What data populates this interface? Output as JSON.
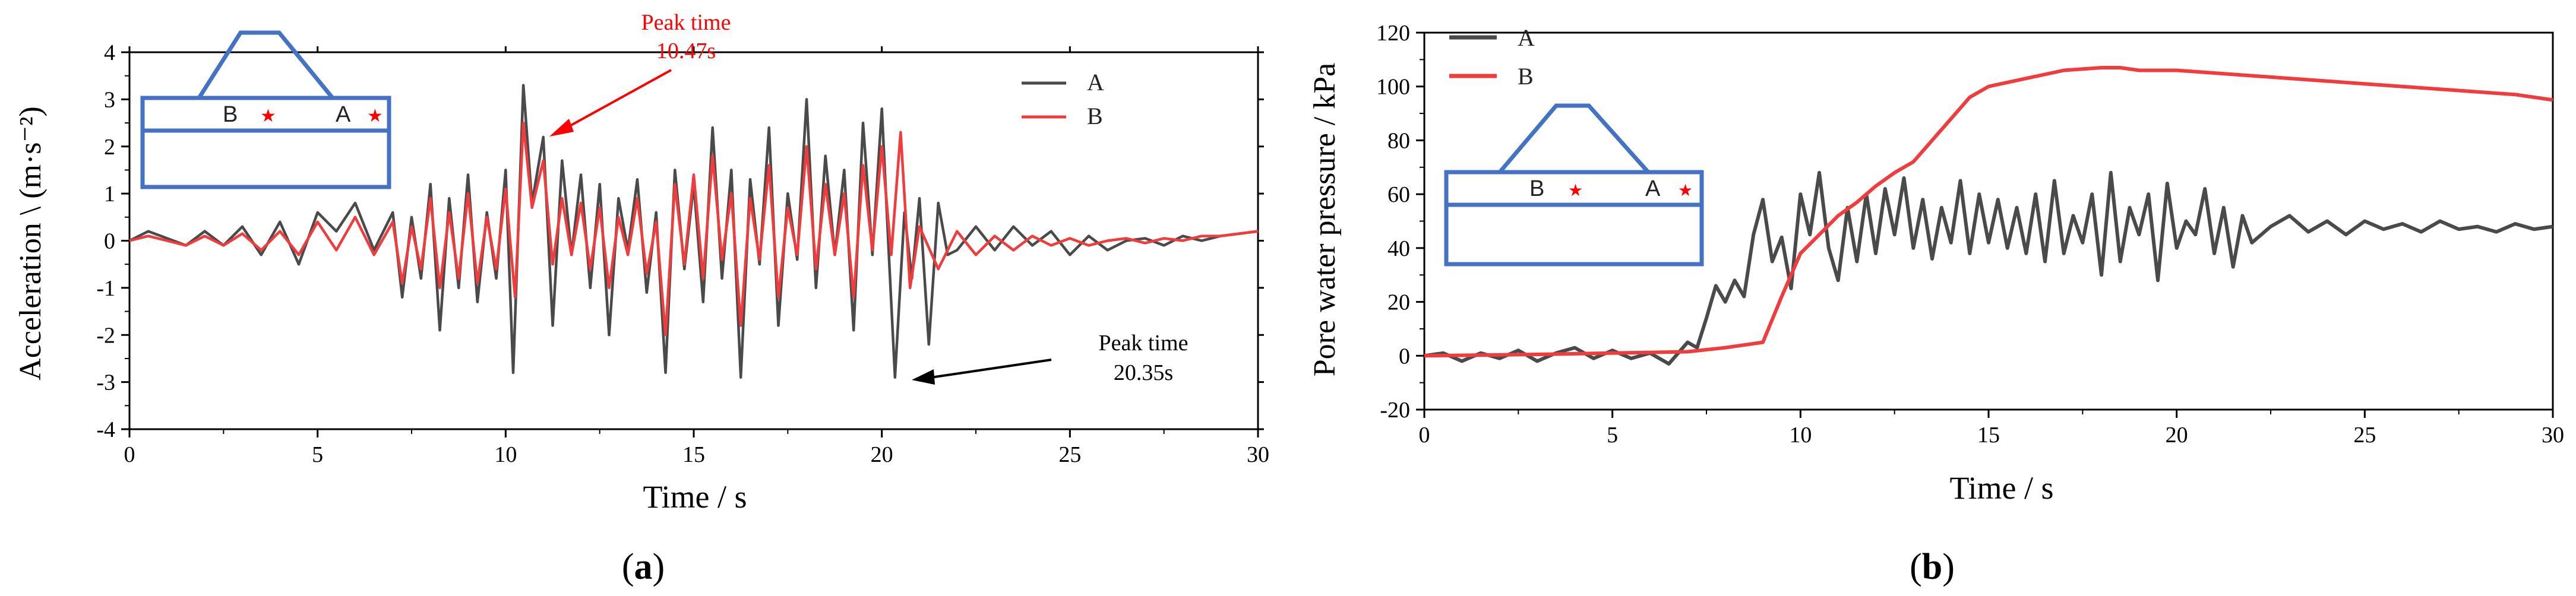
{
  "colors": {
    "series_A": "#4a4a4a",
    "series_B": "#f03c3c",
    "inset": "#4472c4",
    "star": "#ff0000",
    "axis": "#000000",
    "peak_red": "#ff0000"
  },
  "panel_labels": {
    "a": "(a)",
    "b": "(b)"
  },
  "chart_data": [
    {
      "type": "line",
      "title": "",
      "xlabel": "Time / s",
      "ylabel": "Acceleration \\ (m·s⁻²)",
      "xlim": [
        0,
        30
      ],
      "ylim": [
        -4,
        4
      ],
      "xticks": [
        0,
        5,
        10,
        15,
        20,
        25,
        30
      ],
      "yticks": [
        -4,
        -3,
        -2,
        -1,
        0,
        1,
        2,
        3,
        4
      ],
      "grid": false,
      "legend": "top-right",
      "inset": {
        "label_b": "B",
        "label_a": "A"
      },
      "series": [
        {
          "name": "A",
          "x": [
            0,
            0.5,
            1,
            1.5,
            2,
            2.5,
            3,
            3.5,
            4,
            4.5,
            5,
            5.5,
            6,
            6.5,
            7,
            7.25,
            7.5,
            7.75,
            8,
            8.25,
            8.5,
            8.75,
            9,
            9.25,
            9.5,
            9.75,
            10,
            10.2,
            10.47,
            10.7,
            11,
            11.25,
            11.5,
            11.75,
            12,
            12.25,
            12.5,
            12.75,
            13,
            13.25,
            13.5,
            13.75,
            14,
            14.25,
            14.5,
            14.75,
            15,
            15.25,
            15.5,
            15.75,
            16,
            16.25,
            16.5,
            16.75,
            17,
            17.25,
            17.5,
            17.75,
            18,
            18.25,
            18.5,
            18.75,
            19,
            19.25,
            19.5,
            19.75,
            20,
            20.2,
            20.35,
            20.6,
            20.8,
            21,
            21.25,
            21.5,
            21.75,
            22,
            22.5,
            23,
            23.5,
            24,
            24.5,
            25,
            25.5,
            26,
            26.5,
            27,
            27.5,
            28,
            28.5,
            29,
            29.5,
            30
          ],
          "values": [
            0,
            0.2,
            0.05,
            -0.1,
            0.2,
            -0.1,
            0.3,
            -0.3,
            0.4,
            -0.5,
            0.6,
            0.2,
            0.8,
            -0.2,
            0.6,
            -1.2,
            0.5,
            -0.8,
            1.2,
            -1.9,
            0.9,
            -1.0,
            1.4,
            -1.3,
            0.6,
            -0.8,
            1.5,
            -2.8,
            3.3,
            0.8,
            2.2,
            -1.8,
            1.7,
            -0.3,
            1.4,
            -1.0,
            1.2,
            -2.0,
            0.9,
            -0.2,
            1.3,
            -1.1,
            0.6,
            -2.8,
            1.5,
            -0.6,
            1.2,
            -1.3,
            2.4,
            -0.8,
            1.5,
            -2.9,
            1.3,
            -0.5,
            2.4,
            -1.8,
            1.0,
            -0.4,
            3.0,
            -1.0,
            1.8,
            -0.3,
            1.5,
            -1.9,
            2.5,
            -0.3,
            2.8,
            -0.5,
            -2.9,
            0.6,
            -0.8,
            0.9,
            -2.2,
            0.8,
            -0.3,
            -0.2,
            0.3,
            -0.2,
            0.3,
            -0.1,
            0.2,
            -0.3,
            0.1,
            -0.2,
            0.0,
            0.05,
            -0.1,
            0.1,
            0.0,
            0.1,
            0.15,
            0.2
          ]
        },
        {
          "name": "B",
          "x": [
            0,
            0.5,
            1,
            1.5,
            2,
            2.5,
            3,
            3.5,
            4,
            4.5,
            5,
            5.5,
            6,
            6.5,
            7,
            7.25,
            7.5,
            7.75,
            8,
            8.25,
            8.5,
            8.75,
            9,
            9.25,
            9.5,
            9.75,
            10,
            10.25,
            10.47,
            10.7,
            11,
            11.25,
            11.5,
            11.75,
            12,
            12.25,
            12.5,
            12.75,
            13,
            13.25,
            13.5,
            13.75,
            14,
            14.25,
            14.5,
            14.75,
            15,
            15.25,
            15.5,
            15.75,
            16,
            16.25,
            16.5,
            16.75,
            17,
            17.25,
            17.5,
            17.75,
            18,
            18.25,
            18.5,
            18.75,
            19,
            19.25,
            19.5,
            19.75,
            20,
            20.25,
            20.5,
            20.75,
            21,
            21.5,
            22,
            22.5,
            23,
            23.5,
            24,
            24.5,
            25,
            25.5,
            26,
            26.5,
            27,
            27.5,
            28,
            28.5,
            29,
            29.5,
            30
          ],
          "values": [
            0,
            0.1,
            0.0,
            -0.1,
            0.1,
            -0.1,
            0.15,
            -0.2,
            0.2,
            -0.3,
            0.4,
            -0.2,
            0.5,
            -0.3,
            0.4,
            -0.9,
            0.3,
            -0.6,
            0.9,
            -1.0,
            0.6,
            -0.8,
            1.0,
            -0.9,
            0.5,
            -0.6,
            1.1,
            -1.2,
            2.5,
            0.7,
            1.7,
            -0.5,
            0.9,
            -0.3,
            0.8,
            -0.6,
            0.7,
            -1.0,
            0.5,
            -0.3,
            0.9,
            -0.7,
            0.4,
            -2.0,
            1.2,
            -0.5,
            1.4,
            -0.8,
            1.8,
            -0.4,
            1.0,
            -1.8,
            0.9,
            -0.4,
            1.6,
            -1.2,
            0.7,
            -0.3,
            2.0,
            -0.6,
            1.2,
            -0.3,
            1.0,
            -1.2,
            1.6,
            -0.2,
            2.0,
            -0.3,
            2.3,
            -1.0,
            0.3,
            -0.6,
            0.2,
            -0.3,
            0.1,
            -0.2,
            0.1,
            -0.1,
            0.05,
            -0.1,
            0.0,
            0.05,
            -0.05,
            0.05,
            0.0,
            0.1,
            0.1,
            0.15,
            0.2
          ]
        }
      ],
      "annotations": [
        {
          "text_line1": "Peak time",
          "text_line2": "10.47s",
          "color": "#ff0000",
          "x": 10.9,
          "y": 2.9
        },
        {
          "text_line1": "Peak time",
          "text_line2": "20.35s",
          "color": "#000000",
          "x": 20.7,
          "y": -2.9
        }
      ]
    },
    {
      "type": "line",
      "title": "",
      "xlabel": "Time / s",
      "ylabel": "Pore water pressure / kPa",
      "xlim": [
        0,
        30
      ],
      "ylim": [
        -20,
        120
      ],
      "xticks": [
        0,
        5,
        10,
        15,
        20,
        25,
        30
      ],
      "yticks": [
        -20,
        0,
        20,
        40,
        60,
        80,
        100,
        120
      ],
      "grid": false,
      "legend": "top-left",
      "inset": {
        "label_b": "B",
        "label_a": "A"
      },
      "series": [
        {
          "name": "A",
          "x": [
            0,
            0.5,
            1,
            1.5,
            2,
            2.5,
            3,
            3.5,
            4,
            4.5,
            5,
            5.5,
            6,
            6.5,
            7,
            7.25,
            7.5,
            7.75,
            8,
            8.25,
            8.5,
            8.75,
            9,
            9.25,
            9.5,
            9.75,
            10,
            10.25,
            10.5,
            10.75,
            11,
            11.25,
            11.5,
            11.75,
            12,
            12.25,
            12.5,
            12.75,
            13,
            13.25,
            13.5,
            13.75,
            14,
            14.25,
            14.5,
            14.75,
            15,
            15.25,
            15.5,
            15.75,
            16,
            16.25,
            16.5,
            16.75,
            17,
            17.25,
            17.5,
            17.75,
            18,
            18.25,
            18.5,
            18.75,
            19,
            19.25,
            19.5,
            19.75,
            20,
            20.25,
            20.5,
            20.75,
            21,
            21.25,
            21.5,
            21.75,
            22,
            22.5,
            23,
            23.5,
            24,
            24.5,
            25,
            25.5,
            26,
            26.5,
            27,
            27.5,
            28,
            28.5,
            29,
            29.5,
            30
          ],
          "values": [
            0,
            1,
            -2,
            1,
            -1,
            2,
            -2,
            1,
            3,
            -1,
            2,
            -1,
            1,
            -3,
            5,
            3,
            14,
            26,
            20,
            28,
            22,
            45,
            58,
            35,
            44,
            25,
            60,
            45,
            68,
            40,
            28,
            55,
            35,
            60,
            38,
            62,
            45,
            66,
            40,
            58,
            36,
            55,
            42,
            65,
            38,
            60,
            42,
            58,
            40,
            55,
            38,
            60,
            35,
            65,
            38,
            52,
            42,
            60,
            30,
            68,
            35,
            55,
            45,
            60,
            28,
            64,
            40,
            50,
            45,
            62,
            38,
            55,
            33,
            52,
            42,
            48,
            52,
            46,
            50,
            45,
            50,
            47,
            49,
            46,
            50,
            47,
            48,
            46,
            49,
            47,
            48
          ]
        },
        {
          "name": "B",
          "x": [
            0,
            3,
            5,
            7,
            8,
            9,
            9.5,
            10,
            10.5,
            11,
            11.5,
            12,
            12.5,
            13,
            13.5,
            14,
            14.5,
            15,
            16,
            17,
            18,
            18.5,
            19,
            20,
            21,
            22,
            23,
            24,
            25,
            26,
            27,
            28,
            29,
            30
          ],
          "values": [
            0,
            0.5,
            1,
            1.5,
            3,
            5,
            22,
            38,
            45,
            52,
            57,
            63,
            68,
            72,
            80,
            88,
            96,
            100,
            103,
            106,
            107,
            107,
            106,
            106,
            105,
            104,
            103,
            102,
            101,
            100,
            99,
            98,
            97,
            95
          ]
        }
      ],
      "annotations": []
    }
  ]
}
